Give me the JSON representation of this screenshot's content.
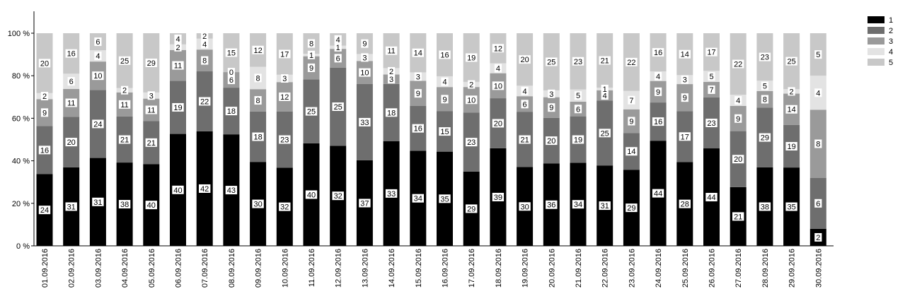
{
  "chart_data": {
    "type": "bar",
    "stacked": true,
    "normalized_percent": true,
    "title": "",
    "xlabel": "",
    "ylabel": "",
    "ylim": [
      0,
      100
    ],
    "y_ticks": [
      "0 %",
      "20 %",
      "40 %",
      "60 %",
      "80 %",
      "100 %"
    ],
    "grid": false,
    "legend_position": "top-right",
    "categories": [
      "01.09.2016",
      "02.09.2016",
      "03.09.2016",
      "04.09.2016",
      "05.09.2016",
      "06.09.2016",
      "07.09.2016",
      "08.09.2016",
      "09.09.2016",
      "10.09.2016",
      "11.09.2016",
      "12.09.2016",
      "13.09.2016",
      "14.09.2016",
      "15.09.2016",
      "16.09.2016",
      "17.09.2016",
      "18.09.2016",
      "19.09.2016",
      "20.09.2016",
      "21.09.2016",
      "22.09.2016",
      "23.09.2016",
      "24.09.2016",
      "25.09.2016",
      "26.09.2016",
      "27.09.2016",
      "28.09.2016",
      "29.09.2016",
      "30.09.2016"
    ],
    "series": [
      {
        "name": "1",
        "color": "#000000",
        "values": [
          24,
          31,
          31,
          38,
          40,
          40,
          42,
          43,
          30,
          32,
          40,
          32,
          37,
          33,
          34,
          35,
          29,
          39,
          30,
          36,
          34,
          31,
          29,
          44,
          28,
          44,
          21,
          38,
          35,
          2
        ]
      },
      {
        "name": "2",
        "color": "#6e6e6e",
        "values": [
          16,
          20,
          24,
          21,
          21,
          19,
          22,
          18,
          18,
          23,
          25,
          25,
          33,
          18,
          16,
          15,
          23,
          20,
          21,
          20,
          19,
          25,
          14,
          16,
          17,
          23,
          20,
          29,
          19,
          6
        ]
      },
      {
        "name": "3",
        "color": "#9a9a9a",
        "values": [
          9,
          11,
          10,
          11,
          11,
          11,
          8,
          6,
          8,
          12,
          9,
          6,
          10,
          3,
          9,
          9,
          10,
          10,
          6,
          9,
          6,
          4,
          9,
          9,
          9,
          7,
          9,
          8,
          14,
          8
        ]
      },
      {
        "name": "4",
        "color": "#e3e3e3",
        "values": [
          2,
          6,
          4,
          2,
          3,
          2,
          4,
          0,
          8,
          3,
          1,
          1,
          3,
          2,
          3,
          4,
          2,
          4,
          4,
          3,
          5,
          1,
          7,
          4,
          3,
          5,
          4,
          5,
          2,
          4
        ]
      },
      {
        "name": "5",
        "color": "#c8c8c8",
        "values": [
          20,
          16,
          6,
          25,
          29,
          4,
          2,
          15,
          12,
          17,
          8,
          4,
          9,
          11,
          14,
          16,
          19,
          12,
          20,
          25,
          23,
          21,
          22,
          16,
          14,
          17,
          22,
          23,
          25,
          5
        ]
      }
    ]
  }
}
